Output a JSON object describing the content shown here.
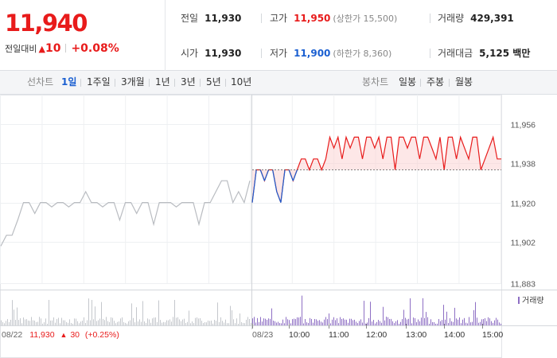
{
  "summary": {
    "price": "11,940",
    "change_label": "전일대비",
    "change_arrow": "▲",
    "change_value": "10",
    "change_rate": "+0.08%",
    "prev_close": {
      "label": "전일",
      "value": "11,930"
    },
    "open": {
      "label": "시가",
      "value": "11,930"
    },
    "high": {
      "label": "고가",
      "value": "11,950",
      "sub": "(상한가 15,500)"
    },
    "low": {
      "label": "저가",
      "value": "11,900",
      "sub": "(하한가 8,360)"
    },
    "volume": {
      "label": "거래량",
      "value": "429,391"
    },
    "amount": {
      "label": "거래대금",
      "value": "5,125 백만"
    }
  },
  "toolbar": {
    "line_label": "선차트",
    "line_periods": [
      "1일",
      "1주일",
      "3개월",
      "1년",
      "3년",
      "5년",
      "10년"
    ],
    "active_period": "1일",
    "candle_label": "봉차트",
    "candle_periods": [
      "일봉",
      "주봉",
      "월봉"
    ]
  },
  "chart_data": {
    "type": "line",
    "y_ticks": [
      "11,956",
      "11,938",
      "11,920",
      "11,902",
      "11,883"
    ],
    "ylim": [
      11883,
      11956
    ],
    "x_labels": [
      "08/23",
      "10:00",
      "11:00",
      "12:00",
      "13:00",
      "14:00",
      "15:00"
    ],
    "prev_day_label": "08/22",
    "prev_day_close": "11,930",
    "prev_day_change_arrow": "▲",
    "prev_day_change": "30",
    "prev_day_rate": "(+0.25%)",
    "volume_legend": "거래량",
    "reference_price": 11935,
    "prev_day_values": [
      11900,
      11905,
      11905,
      11912,
      11920,
      11920,
      11915,
      11920,
      11920,
      11918,
      11920,
      11920,
      11918,
      11920,
      11920,
      11925,
      11920,
      11920,
      11918,
      11920,
      11920,
      11912,
      11920,
      11920,
      11915,
      11920,
      11920,
      11910,
      11920,
      11920,
      11920,
      11918,
      11920,
      11920,
      11920,
      11910,
      11920,
      11920,
      11925,
      11930,
      11930,
      11920,
      11925,
      11920,
      11930
    ],
    "today_values": [
      11920,
      11935,
      11935,
      11930,
      11935,
      11935,
      11925,
      11920,
      11935,
      11935,
      11930,
      11935,
      11940,
      11940,
      11935,
      11940,
      11940,
      11935,
      11940,
      11950,
      11945,
      11950,
      11940,
      11950,
      11945,
      11950,
      11950,
      11940,
      11950,
      11950,
      11945,
      11950,
      11940,
      11950,
      11950,
      11935,
      11950,
      11950,
      11945,
      11950,
      11950,
      11940,
      11950,
      11950,
      11945,
      11940,
      11950,
      11935,
      11950,
      11950,
      11940,
      11950,
      11945,
      11940,
      11950,
      11950,
      11935,
      11940,
      11945,
      11950,
      11940,
      11940
    ]
  }
}
